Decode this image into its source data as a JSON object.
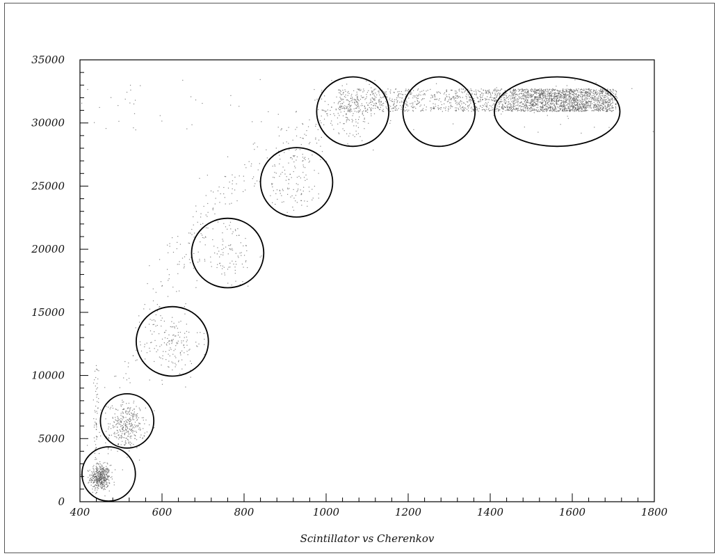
{
  "chart_data": {
    "type": "scatter",
    "title": "",
    "xlabel": "Scintillator vs Cherenkov",
    "ylabel": "",
    "xlim": [
      400,
      1800
    ],
    "ylim": [
      0,
      35000
    ],
    "grid": false,
    "x_ticks": [
      400,
      600,
      800,
      1000,
      1200,
      1400,
      1600,
      1800
    ],
    "y_ticks": [
      0,
      5000,
      10000,
      15000,
      20000,
      25000,
      30000,
      35000
    ],
    "x_tick_labels": [
      "400",
      "600",
      "800",
      "1000",
      "1200",
      "1400",
      "1600",
      "1800"
    ],
    "y_tick_labels": [
      "0",
      "5000",
      "10000",
      "15000",
      "20000",
      "25000",
      "30000",
      "35000"
    ],
    "marker_color": "#5a5a5a",
    "clusters": [
      {
        "x": 450,
        "y": 1900,
        "sx": 12,
        "sy": 500,
        "n": 450
      },
      {
        "x": 515,
        "y": 6000,
        "sx": 22,
        "sy": 900,
        "n": 320
      },
      {
        "x": 625,
        "y": 12500,
        "sx": 35,
        "sy": 1300,
        "n": 160
      },
      {
        "x": 755,
        "y": 19700,
        "sx": 38,
        "sy": 1400,
        "n": 110
      },
      {
        "x": 925,
        "y": 25600,
        "sx": 35,
        "sy": 1400,
        "n": 120
      },
      {
        "x": 1060,
        "y": 31000,
        "sx": 35,
        "sy": 900,
        "n": 140
      }
    ],
    "band": {
      "x_start": 1030,
      "x_end": 1700,
      "y_start": 30900,
      "y_end": 32700,
      "x_peak": 1560,
      "n": 2600
    },
    "annotations": [
      {
        "type": "ellipse",
        "cx": 470,
        "cy": 2200,
        "rx": 65,
        "ry": 2150
      },
      {
        "type": "ellipse",
        "cx": 515,
        "cy": 6400,
        "rx": 65,
        "ry": 2150
      },
      {
        "type": "ellipse",
        "cx": 625,
        "cy": 12700,
        "rx": 88,
        "ry": 2750
      },
      {
        "type": "ellipse",
        "cx": 760,
        "cy": 19700,
        "rx": 88,
        "ry": 2750
      },
      {
        "type": "ellipse",
        "cx": 928,
        "cy": 25300,
        "rx": 88,
        "ry": 2750
      },
      {
        "type": "ellipse",
        "cx": 1065,
        "cy": 30900,
        "rx": 88,
        "ry": 2750
      },
      {
        "type": "ellipse",
        "cx": 1275,
        "cy": 30900,
        "rx": 88,
        "ry": 2750
      },
      {
        "type": "ellipse",
        "cx": 1563,
        "cy": 30900,
        "rx": 153,
        "ry": 2750
      }
    ]
  }
}
